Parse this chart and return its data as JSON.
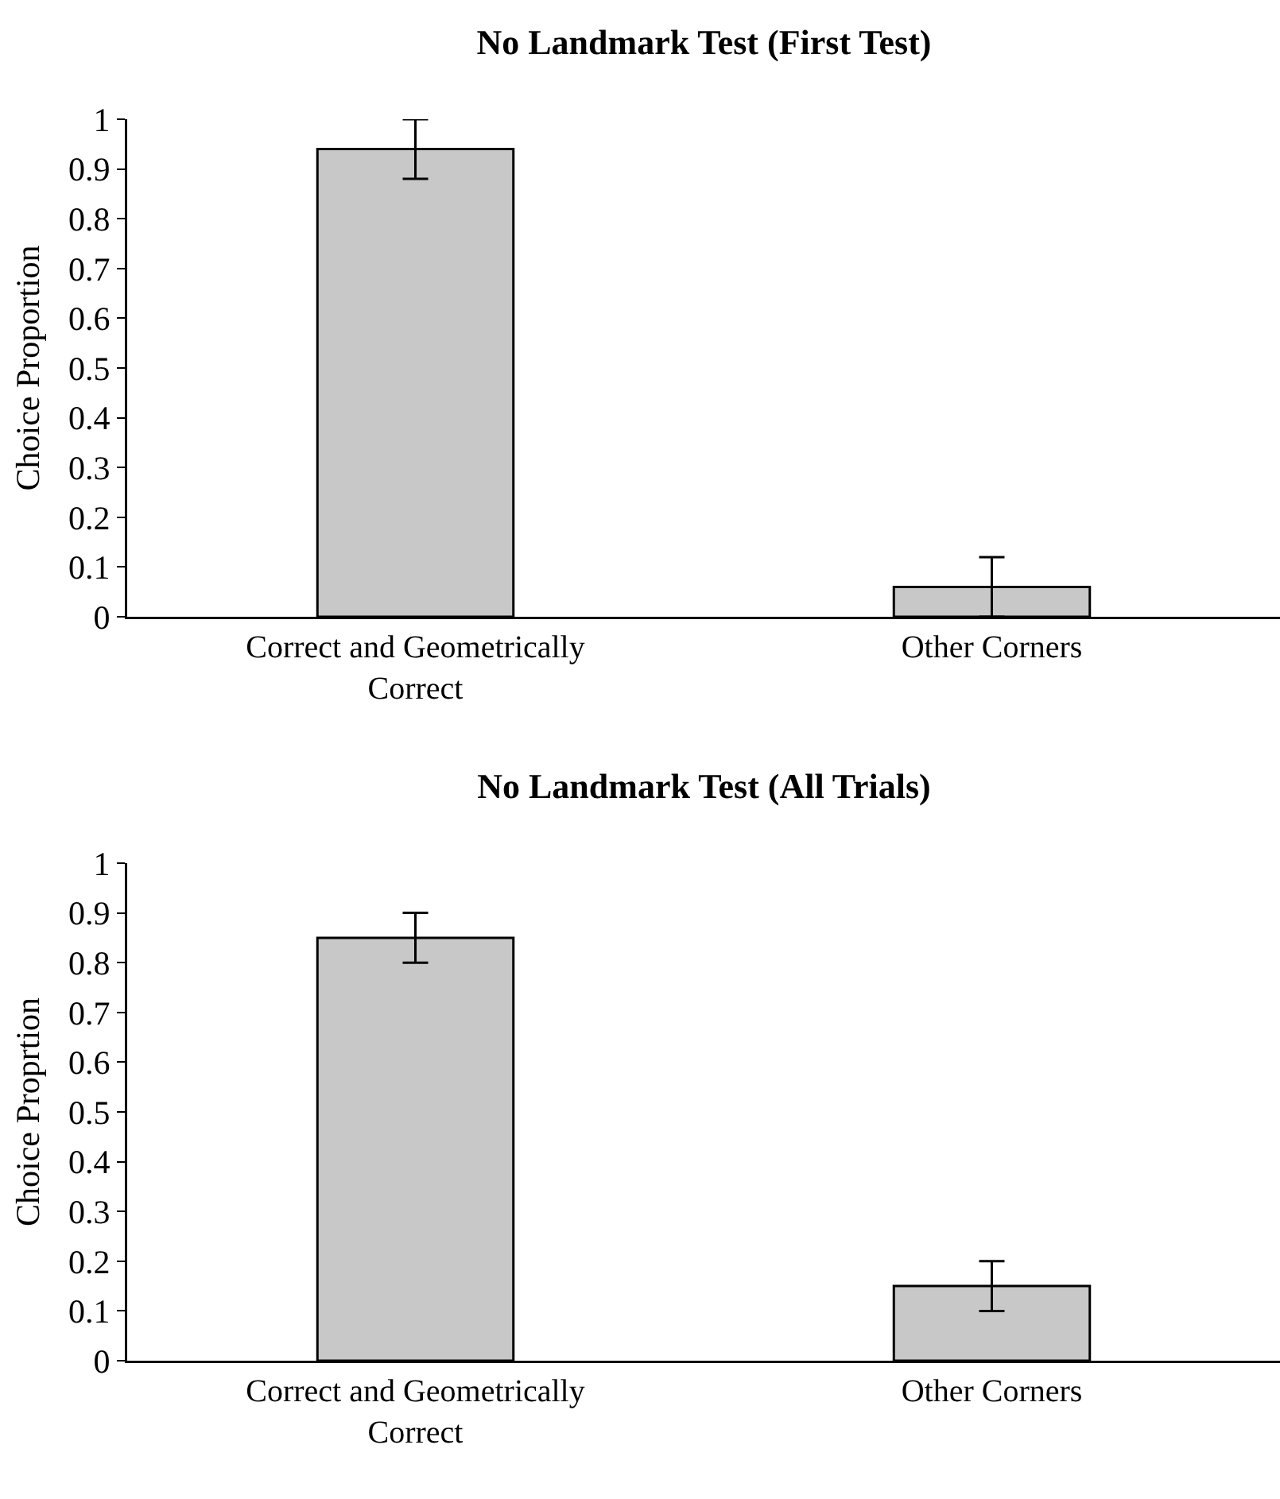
{
  "chart_data": [
    {
      "type": "bar",
      "title": "No Landmark Test (First Test)",
      "ylabel": "Choice Proportion",
      "categories": [
        "Correct and Geometrically Correct",
        "Other Corners"
      ],
      "values": [
        0.94,
        0.06
      ],
      "errors": [
        0.06,
        0.06
      ],
      "color": "#c8c8c8",
      "ylim": [
        0,
        1
      ],
      "yticks": [
        0,
        0.1,
        0.2,
        0.3,
        0.4,
        0.5,
        0.6,
        0.7,
        0.8,
        0.9,
        1
      ],
      "grid": false
    },
    {
      "type": "bar",
      "title": "No Landmark Test (All Trials)",
      "ylabel": "Choice Proprtion",
      "categories": [
        "Correct and Geometrically Correct",
        "Other Corners"
      ],
      "values": [
        0.85,
        0.15
      ],
      "errors": [
        0.05,
        0.05
      ],
      "color": "#c8c8c8",
      "ylim": [
        0,
        1
      ],
      "yticks": [
        0,
        0.1,
        0.2,
        0.3,
        0.4,
        0.5,
        0.6,
        0.7,
        0.8,
        0.9,
        1
      ],
      "grid": false
    }
  ]
}
